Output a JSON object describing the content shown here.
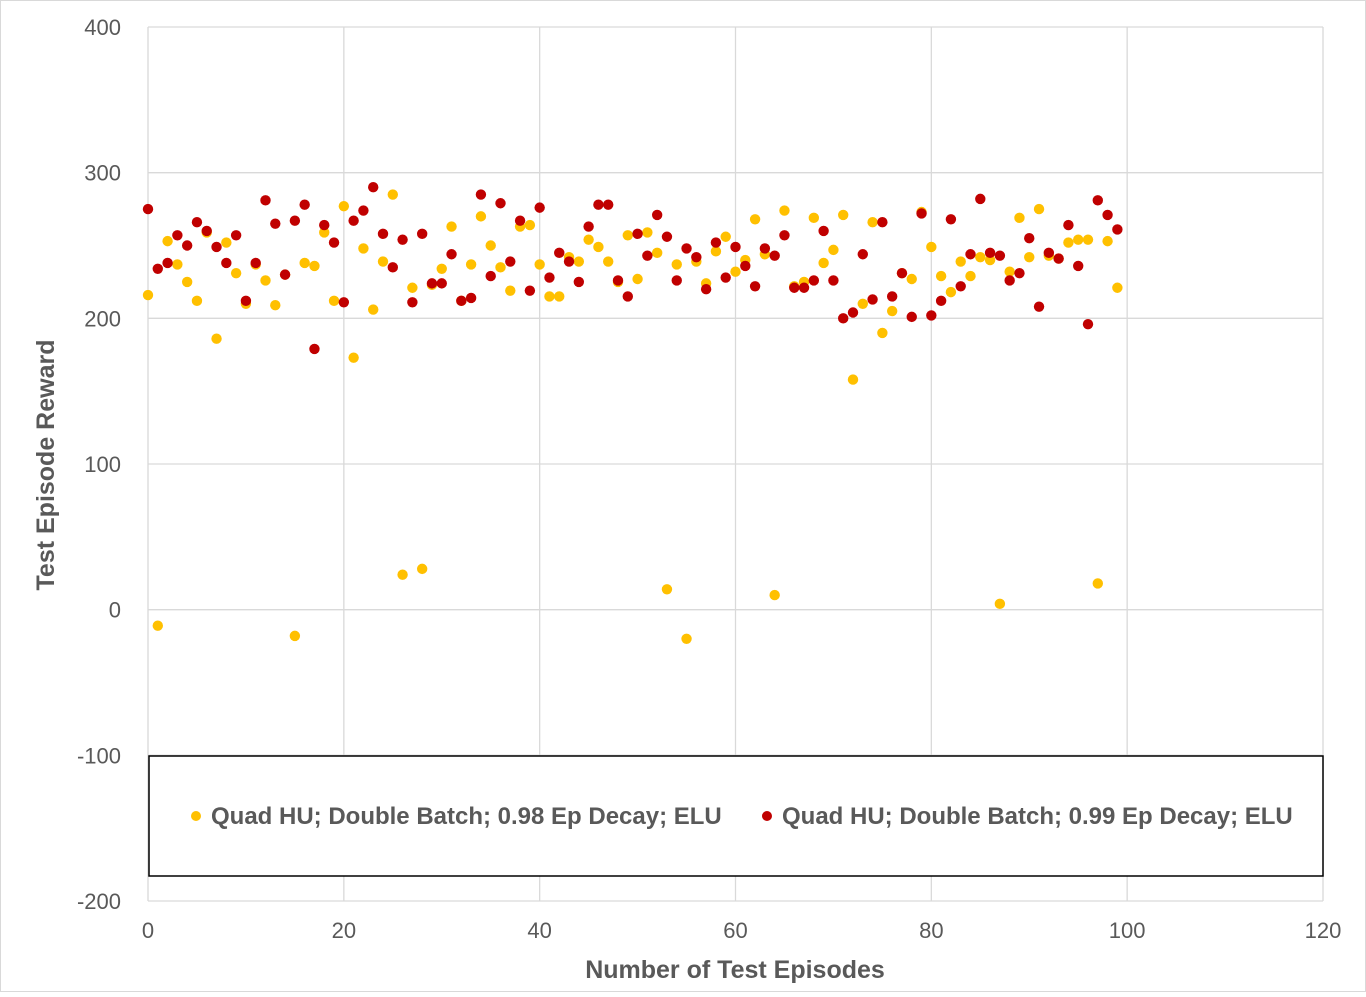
{
  "chart_data": {
    "type": "scatter",
    "xlabel": "Number of Test Episodes",
    "ylabel": "Test Episode Reward",
    "xlim": [
      0,
      120
    ],
    "ylim": [
      -200,
      400
    ],
    "x_ticks": [
      0,
      20,
      40,
      60,
      80,
      100,
      120
    ],
    "y_ticks": [
      -200,
      -100,
      0,
      100,
      200,
      300,
      400
    ],
    "grid": true,
    "legend_position": "bottom",
    "series": [
      {
        "name": "Quad HU; Double Batch; 0.98 Ep Decay; ELU",
        "color": "#ffc000",
        "x": [
          0,
          1,
          2,
          3,
          4,
          5,
          6,
          7,
          8,
          9,
          10,
          11,
          12,
          13,
          14,
          15,
          16,
          17,
          18,
          19,
          20,
          21,
          22,
          23,
          24,
          25,
          26,
          27,
          28,
          29,
          30,
          31,
          32,
          33,
          34,
          35,
          36,
          37,
          38,
          39,
          40,
          41,
          42,
          43,
          44,
          45,
          46,
          47,
          48,
          49,
          50,
          51,
          52,
          53,
          54,
          55,
          56,
          57,
          58,
          59,
          60,
          61,
          62,
          63,
          64,
          65,
          66,
          67,
          68,
          69,
          70,
          71,
          72,
          73,
          74,
          75,
          76,
          77,
          78,
          79,
          80,
          81,
          82,
          83,
          84,
          85,
          86,
          87,
          88,
          89,
          90,
          91,
          92,
          93,
          94,
          95,
          96,
          97,
          98,
          99
        ],
        "y": [
          216,
          -11,
          253,
          237,
          225,
          212,
          259,
          186,
          252,
          231,
          210,
          237,
          226,
          209,
          230,
          -18,
          238,
          236,
          259,
          212,
          277,
          173,
          248,
          206,
          239,
          285,
          24,
          221,
          28,
          223,
          234,
          263,
          212,
          237,
          270,
          250,
          235,
          219,
          263,
          264,
          237,
          215,
          215,
          242,
          239,
          254,
          249,
          239,
          225,
          257,
          227,
          259,
          245,
          14,
          237,
          -20,
          239,
          224,
          246,
          256,
          232,
          240,
          268,
          244,
          10,
          274,
          222,
          225,
          269,
          238,
          247,
          271,
          158,
          210,
          266,
          190,
          205,
          231,
          227,
          273,
          249,
          229,
          218,
          239,
          229,
          242,
          240,
          4,
          232,
          269,
          242,
          275,
          243,
          241,
          252,
          254,
          254,
          18,
          253,
          221
        ]
      },
      {
        "name": "Quad HU; Double Batch; 0.99 Ep Decay; ELU",
        "color": "#c00000",
        "x": [
          0,
          1,
          2,
          3,
          4,
          5,
          6,
          7,
          8,
          9,
          10,
          11,
          12,
          13,
          14,
          15,
          16,
          17,
          18,
          19,
          20,
          21,
          22,
          23,
          24,
          25,
          26,
          27,
          28,
          29,
          30,
          31,
          32,
          33,
          34,
          35,
          36,
          37,
          38,
          39,
          40,
          41,
          42,
          43,
          44,
          45,
          46,
          47,
          48,
          49,
          50,
          51,
          52,
          53,
          54,
          55,
          56,
          57,
          58,
          59,
          60,
          61,
          62,
          63,
          64,
          65,
          66,
          67,
          68,
          69,
          70,
          71,
          72,
          73,
          74,
          75,
          76,
          77,
          78,
          79,
          80,
          81,
          82,
          83,
          84,
          85,
          86,
          87,
          88,
          89,
          90,
          91,
          92,
          93,
          94,
          95,
          96,
          97,
          98,
          99
        ],
        "y": [
          275,
          234,
          238,
          257,
          250,
          266,
          260,
          249,
          238,
          257,
          212,
          238,
          281,
          265,
          230,
          267,
          278,
          179,
          264,
          252,
          211,
          267,
          274,
          290,
          258,
          235,
          254,
          211,
          258,
          224,
          224,
          244,
          212,
          214,
          285,
          229,
          279,
          239,
          267,
          219,
          276,
          228,
          245,
          239,
          225,
          263,
          278,
          278,
          226,
          215,
          258,
          243,
          271,
          256,
          226,
          248,
          242,
          220,
          252,
          228,
          249,
          236,
          222,
          248,
          243,
          257,
          221,
          221,
          226,
          260,
          226,
          200,
          204,
          244,
          213,
          266,
          215,
          231,
          201,
          272,
          202,
          212,
          268,
          222,
          244,
          282,
          245,
          243,
          226,
          231,
          255,
          208,
          245,
          241,
          264,
          236,
          196,
          281,
          271,
          261
        ]
      }
    ]
  }
}
